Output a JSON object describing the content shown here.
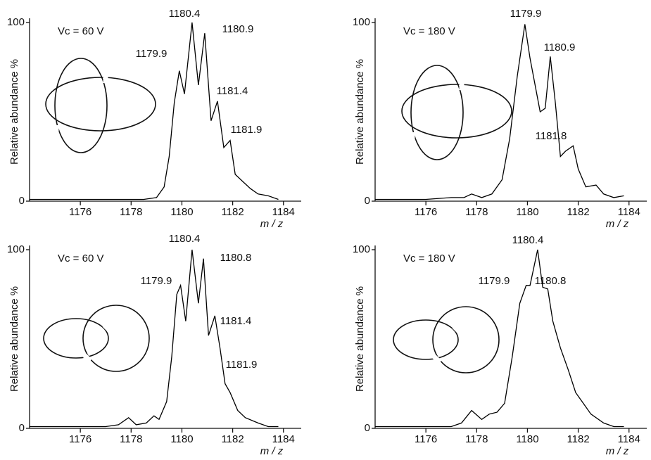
{
  "chart_data": [
    {
      "type": "line",
      "annotation": "Vc = 60 V",
      "xlabel": "m / z",
      "ylabel": "Relative abundance %",
      "color": "#000000",
      "peak_labels": [
        "1180.4",
        "1180.9",
        "1179.9",
        "1181.4",
        "1181.9"
      ],
      "x": [
        1174,
        1175,
        1176,
        1177,
        1178,
        1178.5,
        1179,
        1179.3,
        1179.5,
        1179.7,
        1179.9,
        1180.1,
        1180.4,
        1180.65,
        1180.9,
        1181.15,
        1181.4,
        1181.65,
        1181.9,
        1182.1,
        1182.4,
        1182.7,
        1183,
        1183.4,
        1183.8
      ],
      "values": [
        1,
        1,
        1,
        1,
        1,
        1,
        2,
        8,
        25,
        55,
        73,
        60,
        100,
        65,
        94,
        45,
        56,
        30,
        34,
        15,
        11,
        7,
        4,
        3,
        1
      ],
      "xlim": [
        1174,
        1184.7
      ],
      "xticks": [
        1176,
        1178,
        1180,
        1182,
        1184
      ],
      "ylim": [
        0,
        100
      ],
      "yticks": [
        0,
        100
      ]
    },
    {
      "type": "line",
      "annotation": "Vc = 180 V",
      "xlabel": "m / z",
      "ylabel": "Relative abundance %",
      "color": "#000000",
      "peak_labels": [
        "1179.9",
        "1180.9",
        "1181.8"
      ],
      "x": [
        1174,
        1175,
        1176,
        1177,
        1177.5,
        1177.8,
        1178.2,
        1178.6,
        1179,
        1179.3,
        1179.6,
        1179.9,
        1180.1,
        1180.3,
        1180.5,
        1180.7,
        1180.9,
        1181.1,
        1181.3,
        1181.5,
        1181.8,
        1182,
        1182.3,
        1182.7,
        1183,
        1183.4,
        1183.8
      ],
      "values": [
        1,
        1,
        1,
        2,
        2,
        4,
        2,
        4,
        12,
        35,
        70,
        99,
        80,
        65,
        50,
        52,
        81,
        55,
        25,
        28,
        31,
        18,
        8,
        9,
        4,
        2,
        3
      ],
      "xlim": [
        1174,
        1184.7
      ],
      "xticks": [
        1176,
        1178,
        1180,
        1182,
        1184
      ],
      "ylim": [
        0,
        100
      ],
      "yticks": [
        0,
        100
      ]
    },
    {
      "type": "line",
      "annotation": "Vc = 60 V",
      "xlabel": "m / z",
      "ylabel": "Relative abundance %",
      "color": "#000000",
      "peak_labels": [
        "1180.4",
        "1180.8",
        "1179.9",
        "1181.4",
        "1181.9"
      ],
      "x": [
        1174,
        1175,
        1176,
        1177,
        1177.5,
        1177.9,
        1178.2,
        1178.6,
        1178.9,
        1179.1,
        1179.4,
        1179.6,
        1179.8,
        1179.95,
        1180.15,
        1180.4,
        1180.65,
        1180.85,
        1181.05,
        1181.3,
        1181.5,
        1181.7,
        1181.9,
        1182.2,
        1182.5,
        1183,
        1183.4,
        1183.8
      ],
      "values": [
        1,
        1,
        1,
        1,
        2,
        6,
        2,
        3,
        7,
        5,
        15,
        40,
        75,
        80,
        60,
        100,
        70,
        95,
        52,
        63,
        45,
        25,
        20,
        10,
        6,
        3,
        1,
        1
      ],
      "xlim": [
        1174,
        1184.7
      ],
      "xticks": [
        1176,
        1178,
        1180,
        1182,
        1184
      ],
      "ylim": [
        0,
        100
      ],
      "yticks": [
        0,
        100
      ]
    },
    {
      "type": "line",
      "annotation": "Vc = 180 V",
      "xlabel": "m / z",
      "ylabel": "Relative abundance %",
      "color": "#000000",
      "peak_labels": [
        "1180.4",
        "1179.9",
        "1180.8"
      ],
      "x": [
        1174,
        1175,
        1176,
        1177,
        1177.4,
        1177.8,
        1178.2,
        1178.5,
        1178.8,
        1179.1,
        1179.4,
        1179.7,
        1179.95,
        1180.1,
        1180.4,
        1180.6,
        1180.8,
        1181,
        1181.3,
        1181.6,
        1181.9,
        1182.2,
        1182.5,
        1183,
        1183.4,
        1183.8
      ],
      "values": [
        1,
        1,
        1,
        1,
        3,
        10,
        5,
        8,
        9,
        14,
        40,
        70,
        80,
        80,
        100,
        79,
        78,
        60,
        45,
        33,
        20,
        14,
        8,
        3,
        1,
        1
      ],
      "xlim": [
        1174,
        1184.7
      ],
      "xticks": [
        1176,
        1178,
        1180,
        1182,
        1184
      ],
      "ylim": [
        0,
        100
      ],
      "yticks": [
        0,
        100
      ]
    }
  ]
}
